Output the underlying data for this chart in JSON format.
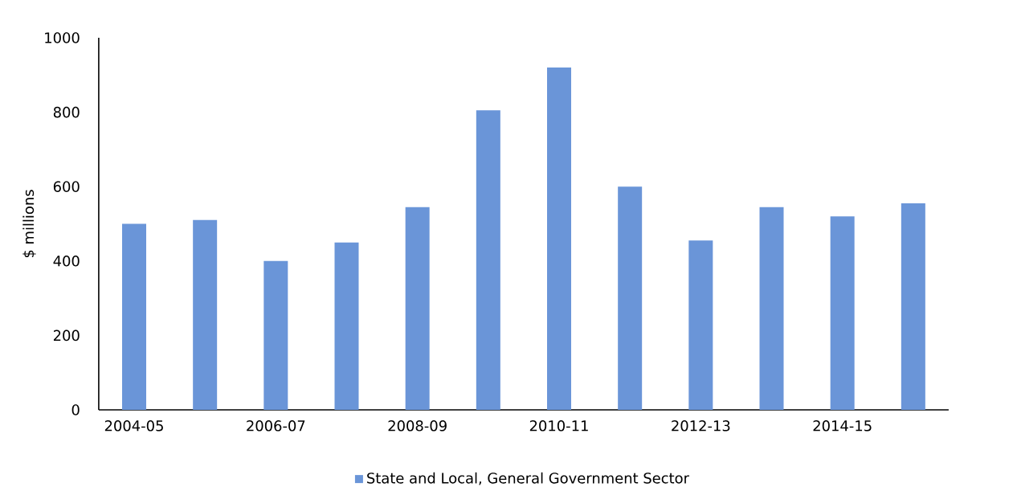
{
  "chart_data": {
    "type": "bar",
    "ylabel": "$ millions",
    "categories": [
      "2004-05",
      null,
      "2006-07",
      null,
      "2008-09",
      null,
      "2010-11",
      null,
      "2012-13",
      null,
      "2014-15",
      null
    ],
    "series": [
      {
        "name": "State and Local, General Government Sector",
        "color": "#6a95d8",
        "values": [
          500,
          510,
          400,
          450,
          545,
          805,
          920,
          600,
          455,
          545,
          520,
          555
        ]
      }
    ],
    "ylim": [
      0,
      1000
    ],
    "yticks": [
      0,
      200,
      400,
      600,
      800,
      1000
    ],
    "legend": "bottom"
  }
}
